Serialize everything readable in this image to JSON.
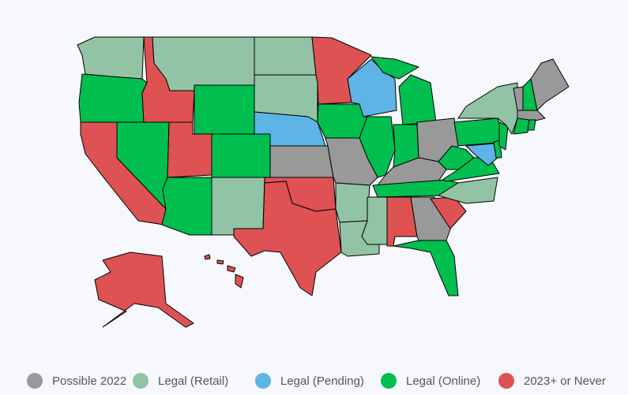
{
  "legend": [
    {
      "label": "Possible 2022",
      "color": "#999999"
    },
    {
      "label": "Legal (Retail)",
      "color": "#92c3a5"
    },
    {
      "label": "Legal (Pending)",
      "color": "#5db4e5"
    },
    {
      "label": "Legal (Online)",
      "color": "#00bf4f"
    },
    {
      "label": "2023+ or Never",
      "color": "#de5254"
    }
  ]
}
